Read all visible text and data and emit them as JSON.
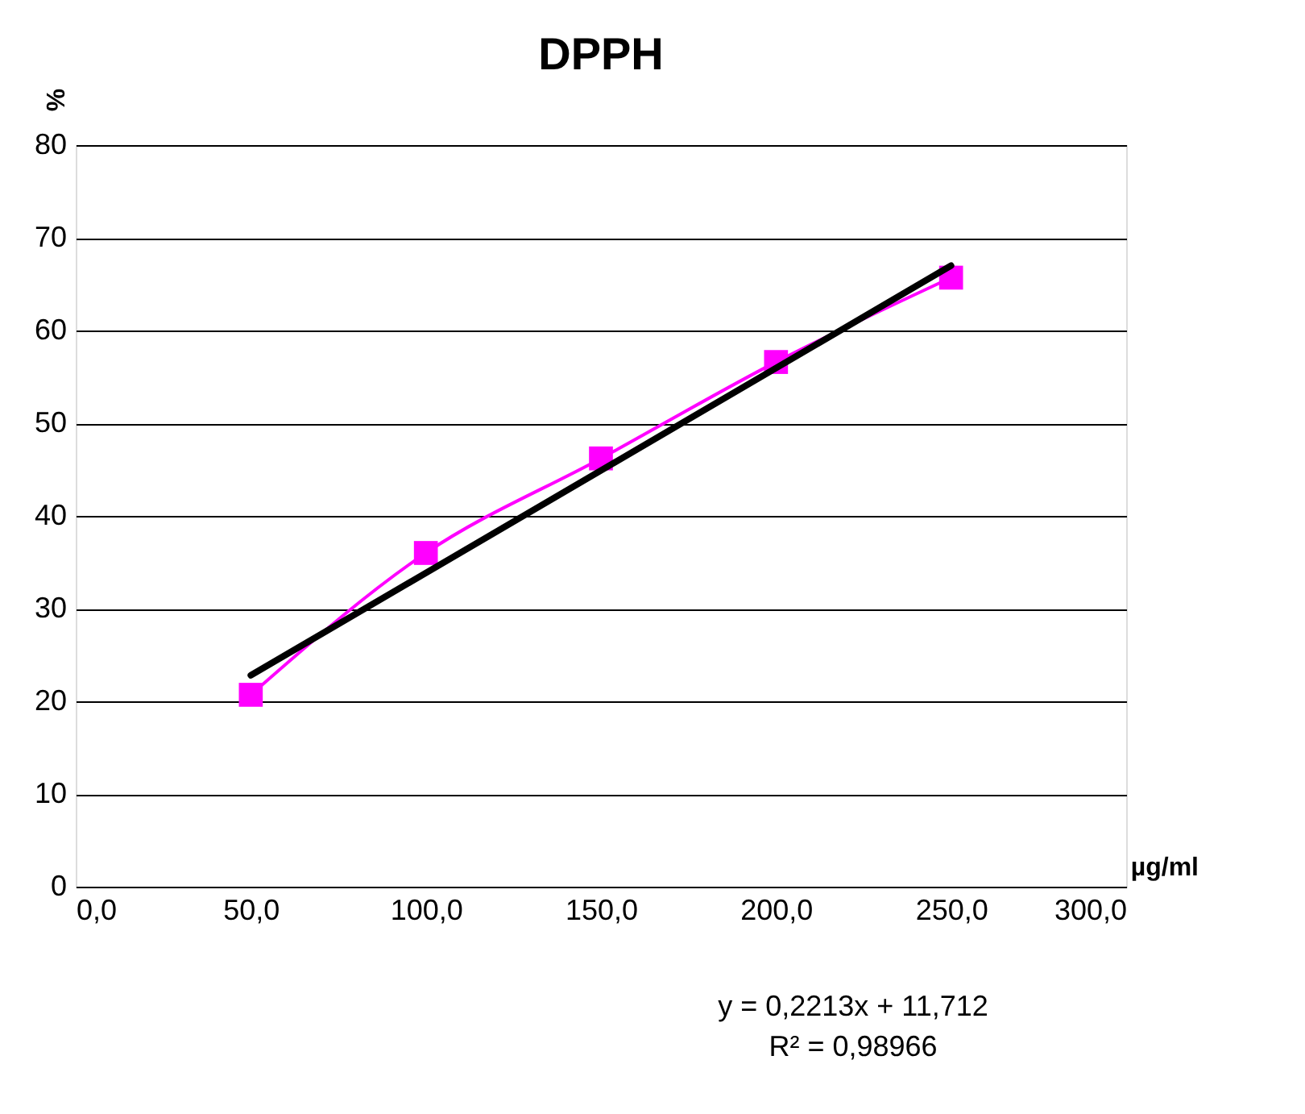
{
  "chart_data": {
    "type": "line",
    "title": "DPPH",
    "xlabel": "µg/ml",
    "ylabel": "%",
    "x": [
      50,
      100,
      150,
      200,
      250
    ],
    "series": [
      {
        "color": "#ff00ff",
        "values": [
          20.7,
          36.0,
          46.2,
          56.6,
          65.7
        ],
        "marker": "square",
        "line_style": "solid"
      },
      {
        "color": "#000000",
        "x": [
          50,
          250
        ],
        "values": [
          22.8,
          67.0
        ],
        "marker": "none",
        "line_style": "solid"
      }
    ],
    "xlim": [
      0,
      300
    ],
    "xticks": [
      {
        "value": 0,
        "label": "0,0"
      },
      {
        "value": 50,
        "label": "50,0"
      },
      {
        "value": 100,
        "label": "100,0"
      },
      {
        "value": 150,
        "label": "150,0"
      },
      {
        "value": 200,
        "label": "200,0"
      },
      {
        "value": 250,
        "label": "250,0"
      },
      {
        "value": 300,
        "label": "300,0"
      }
    ],
    "ylim": [
      0,
      80
    ],
    "yticks": [
      0,
      10,
      20,
      30,
      40,
      50,
      60,
      70,
      80
    ],
    "grid": "y",
    "annotations": [
      "y = 0,2213x + 11,712",
      "R² = 0,98966"
    ]
  }
}
